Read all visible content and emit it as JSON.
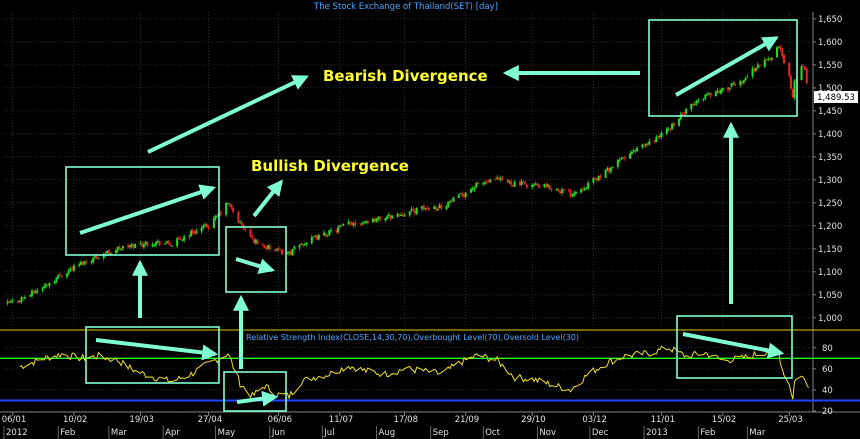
{
  "title": "The Stock Exchange of Thailand(SET) [day]",
  "last_price_label": "1,489.53",
  "annotations": {
    "bearish": "Bearish Divergence",
    "bullish": "Bullish Divergence"
  },
  "rsi_label": "Relative Strength Index(CLOSE,14,30,70),Overbought Level(70),Oversold Level(30)",
  "colors": {
    "background": "#000000",
    "up_candle": "#22dd22",
    "down_candle": "#ee2222",
    "rsi_line": "#f0e020",
    "overbought": "#22ff22",
    "oversold": "#2244ff",
    "annotation_text": "#ffff33",
    "annotation_shape": "#7fffd4",
    "grid": "#4a4a4a",
    "text": "#e0e0e0",
    "title_text": "#4aa8ff",
    "separator": "#b8a000",
    "last_price_box": "#ffffff"
  },
  "chart_data": [
    {
      "type": "candlestick",
      "title": "The Stock Exchange of Thailand(SET) [day]",
      "x_tick_labels": [
        "06/01",
        "10/02",
        "19/03",
        "27/04",
        "06/06",
        "11/07",
        "17/08",
        "21/09",
        "29/10",
        "03/12",
        "11/01",
        "15/02",
        "25/03"
      ],
      "x_month_labels": [
        "2012",
        "Feb",
        "Mar",
        "Apr",
        "May",
        "Jun",
        "Jul",
        "Aug",
        "Sep",
        "Oct",
        "Nov",
        "Dec",
        "2013",
        "Feb",
        "Mar"
      ],
      "ylim": [
        980,
        1665
      ],
      "y_ticks": [
        1000,
        1050,
        1100,
        1150,
        1200,
        1250,
        1300,
        1350,
        1400,
        1450,
        1500,
        1550,
        1600,
        1650
      ],
      "y_tick_labels": [
        "1,000",
        "1,050",
        "1,100",
        "1,150",
        "1,200",
        "1,250",
        "1,300",
        "1,350",
        "1,400",
        "1,450",
        "1,500",
        "1,550",
        "1,600",
        "1,650"
      ],
      "grid": true,
      "last_close": 1489.53,
      "close_series": [
        {
          "date": "2012-01-03",
          "value": 1030
        },
        {
          "date": "2012-01-13",
          "value": 1045
        },
        {
          "date": "2012-01-24",
          "value": 1068
        },
        {
          "date": "2012-02-03",
          "value": 1095
        },
        {
          "date": "2012-02-14",
          "value": 1118
        },
        {
          "date": "2012-02-24",
          "value": 1135
        },
        {
          "date": "2012-03-06",
          "value": 1150
        },
        {
          "date": "2012-03-16",
          "value": 1158
        },
        {
          "date": "2012-03-27",
          "value": 1165
        },
        {
          "date": "2012-04-06",
          "value": 1160
        },
        {
          "date": "2012-04-17",
          "value": 1185
        },
        {
          "date": "2012-04-27",
          "value": 1200
        },
        {
          "date": "2012-05-03",
          "value": 1225
        },
        {
          "date": "2012-05-08",
          "value": 1250
        },
        {
          "date": "2012-05-15",
          "value": 1205
        },
        {
          "date": "2012-05-22",
          "value": 1170
        },
        {
          "date": "2012-05-29",
          "value": 1155
        },
        {
          "date": "2012-06-05",
          "value": 1145
        },
        {
          "date": "2012-06-12",
          "value": 1140
        },
        {
          "date": "2012-06-19",
          "value": 1160
        },
        {
          "date": "2012-06-26",
          "value": 1172
        },
        {
          "date": "2012-07-05",
          "value": 1185
        },
        {
          "date": "2012-07-16",
          "value": 1205
        },
        {
          "date": "2012-07-26",
          "value": 1210
        },
        {
          "date": "2012-08-06",
          "value": 1218
        },
        {
          "date": "2012-08-17",
          "value": 1228
        },
        {
          "date": "2012-08-28",
          "value": 1238
        },
        {
          "date": "2012-09-07",
          "value": 1242
        },
        {
          "date": "2012-09-18",
          "value": 1265
        },
        {
          "date": "2012-09-28",
          "value": 1290
        },
        {
          "date": "2012-10-09",
          "value": 1300
        },
        {
          "date": "2012-10-19",
          "value": 1292
        },
        {
          "date": "2012-10-30",
          "value": 1288
        },
        {
          "date": "2012-11-09",
          "value": 1283
        },
        {
          "date": "2012-11-20",
          "value": 1270
        },
        {
          "date": "2012-11-30",
          "value": 1290
        },
        {
          "date": "2012-12-11",
          "value": 1320
        },
        {
          "date": "2012-12-21",
          "value": 1350
        },
        {
          "date": "2013-01-04",
          "value": 1380
        },
        {
          "date": "2013-01-15",
          "value": 1410
        },
        {
          "date": "2013-01-25",
          "value": 1450
        },
        {
          "date": "2013-02-05",
          "value": 1485
        },
        {
          "date": "2013-02-15",
          "value": 1495
        },
        {
          "date": "2013-02-26",
          "value": 1515
        },
        {
          "date": "2013-03-06",
          "value": 1545
        },
        {
          "date": "2013-03-14",
          "value": 1565
        },
        {
          "date": "2013-03-19",
          "value": 1590
        },
        {
          "date": "2013-03-21",
          "value": 1570
        },
        {
          "date": "2013-03-25",
          "value": 1525
        },
        {
          "date": "2013-03-27",
          "value": 1475
        },
        {
          "date": "2013-03-28",
          "value": 1510
        },
        {
          "date": "2013-04-01",
          "value": 1550
        },
        {
          "date": "2013-04-03",
          "value": 1540
        },
        {
          "date": "2013-04-05",
          "value": 1489.53
        }
      ]
    },
    {
      "type": "line",
      "title": "Relative Strength Index(CLOSE,14,30,70),Overbought Level(70),Oversold Level(30)",
      "ylim": [
        20,
        95
      ],
      "y_ticks": [
        20,
        40,
        60,
        80
      ],
      "y_tick_labels": [
        "20",
        "40",
        "60",
        "80"
      ],
      "overbought": 70,
      "oversold": 30,
      "grid": true,
      "series": [
        {
          "date": "2012-01-10",
          "value": 62
        },
        {
          "date": "2012-01-24",
          "value": 70
        },
        {
          "date": "2012-02-03",
          "value": 74
        },
        {
          "date": "2012-02-14",
          "value": 70
        },
        {
          "date": "2012-02-24",
          "value": 72
        },
        {
          "date": "2012-03-06",
          "value": 68
        },
        {
          "date": "2012-03-16",
          "value": 58
        },
        {
          "date": "2012-03-27",
          "value": 52
        },
        {
          "date": "2012-04-06",
          "value": 48
        },
        {
          "date": "2012-04-17",
          "value": 55
        },
        {
          "date": "2012-04-27",
          "value": 65
        },
        {
          "date": "2012-05-03",
          "value": 70
        },
        {
          "date": "2012-05-08",
          "value": 75
        },
        {
          "date": "2012-05-15",
          "value": 46
        },
        {
          "date": "2012-05-22",
          "value": 34
        },
        {
          "date": "2012-05-29",
          "value": 44
        },
        {
          "date": "2012-06-05",
          "value": 36
        },
        {
          "date": "2012-06-12",
          "value": 34
        },
        {
          "date": "2012-06-19",
          "value": 48
        },
        {
          "date": "2012-06-26",
          "value": 52
        },
        {
          "date": "2012-07-05",
          "value": 55
        },
        {
          "date": "2012-07-16",
          "value": 63
        },
        {
          "date": "2012-07-26",
          "value": 58
        },
        {
          "date": "2012-08-06",
          "value": 55
        },
        {
          "date": "2012-08-17",
          "value": 60
        },
        {
          "date": "2012-08-28",
          "value": 58
        },
        {
          "date": "2012-09-07",
          "value": 55
        },
        {
          "date": "2012-09-18",
          "value": 66
        },
        {
          "date": "2012-09-28",
          "value": 73
        },
        {
          "date": "2012-10-09",
          "value": 68
        },
        {
          "date": "2012-10-19",
          "value": 52
        },
        {
          "date": "2012-10-30",
          "value": 50
        },
        {
          "date": "2012-11-09",
          "value": 45
        },
        {
          "date": "2012-11-20",
          "value": 40
        },
        {
          "date": "2012-11-30",
          "value": 55
        },
        {
          "date": "2012-12-11",
          "value": 66
        },
        {
          "date": "2012-12-21",
          "value": 72
        },
        {
          "date": "2013-01-04",
          "value": 75
        },
        {
          "date": "2013-01-15",
          "value": 80
        },
        {
          "date": "2013-01-25",
          "value": 72
        },
        {
          "date": "2013-02-05",
          "value": 75
        },
        {
          "date": "2013-02-15",
          "value": 68
        },
        {
          "date": "2013-02-26",
          "value": 70
        },
        {
          "date": "2013-03-06",
          "value": 74
        },
        {
          "date": "2013-03-14",
          "value": 77
        },
        {
          "date": "2013-03-19",
          "value": 75
        },
        {
          "date": "2013-03-21",
          "value": 60
        },
        {
          "date": "2013-03-25",
          "value": 45
        },
        {
          "date": "2013-03-27",
          "value": 33
        },
        {
          "date": "2013-03-28",
          "value": 48
        },
        {
          "date": "2013-04-01",
          "value": 55
        },
        {
          "date": "2013-04-03",
          "value": 48
        },
        {
          "date": "2013-04-05",
          "value": 42
        }
      ]
    }
  ]
}
